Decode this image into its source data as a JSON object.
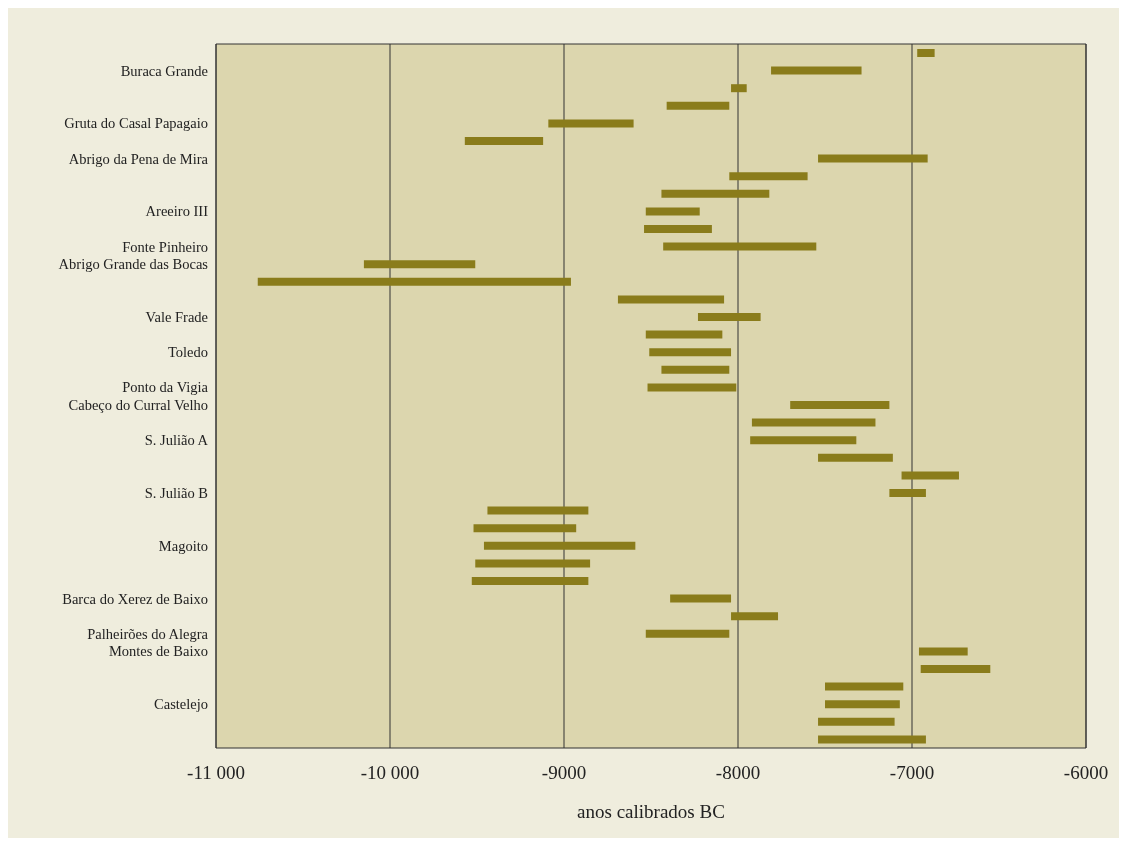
{
  "chart_data": {
    "type": "bar",
    "orientation": "horizontal",
    "xlabel": "anos calibrados BC",
    "categories": [
      null,
      "Buraca Grande",
      null,
      null,
      "Gruta do Casal Papagaio",
      null,
      "Abrigo da Pena de Mira",
      null,
      null,
      "Areeiro III",
      null,
      "Fonte Pinheiro",
      "Abrigo Grande das Bocas",
      null,
      null,
      "Vale Frade",
      null,
      "Toledo",
      null,
      "Ponto da Vigia",
      "Cabeço do Curral Velho",
      null,
      "S. Julião A",
      null,
      null,
      "S. Julião B",
      null,
      null,
      "Magoito",
      null,
      null,
      "Barca do Xerez de Baixo",
      null,
      "Palheirões do Alegra",
      "Montes de Baixo",
      null,
      null,
      "Castelejo",
      null,
      null
    ],
    "base": [
      -6970,
      -7810,
      -8040,
      -8410,
      -9090,
      -9570,
      -7540,
      -8050,
      -8440,
      -8530,
      -8540,
      -8430,
      -10150,
      -10760,
      -8690,
      -8230,
      -8530,
      -8510,
      -8440,
      -8520,
      -7700,
      -7920,
      -7930,
      -7540,
      -7060,
      -7130,
      -9440,
      -9520,
      -9460,
      -9510,
      -9530,
      -8390,
      -8040,
      -8530,
      -6960,
      -6950,
      -7500,
      -7500,
      -7540,
      -7540
    ],
    "values": [
      100,
      520,
      90,
      360,
      490,
      450,
      630,
      450,
      620,
      310,
      390,
      880,
      640,
      1800,
      610,
      360,
      440,
      470,
      390,
      510,
      570,
      710,
      610,
      430,
      330,
      210,
      580,
      590,
      870,
      660,
      670,
      350,
      270,
      480,
      280,
      400,
      450,
      430,
      440,
      620
    ],
    "color": "#8a7c1b",
    "xlim": [
      -11000,
      -6000
    ],
    "xticks": [
      {
        "value": -11000,
        "label": "-11 000"
      },
      {
        "value": -10000,
        "label": "-10 000"
      },
      -9000,
      -8000,
      -7000,
      -6000
    ],
    "grid": "x"
  }
}
